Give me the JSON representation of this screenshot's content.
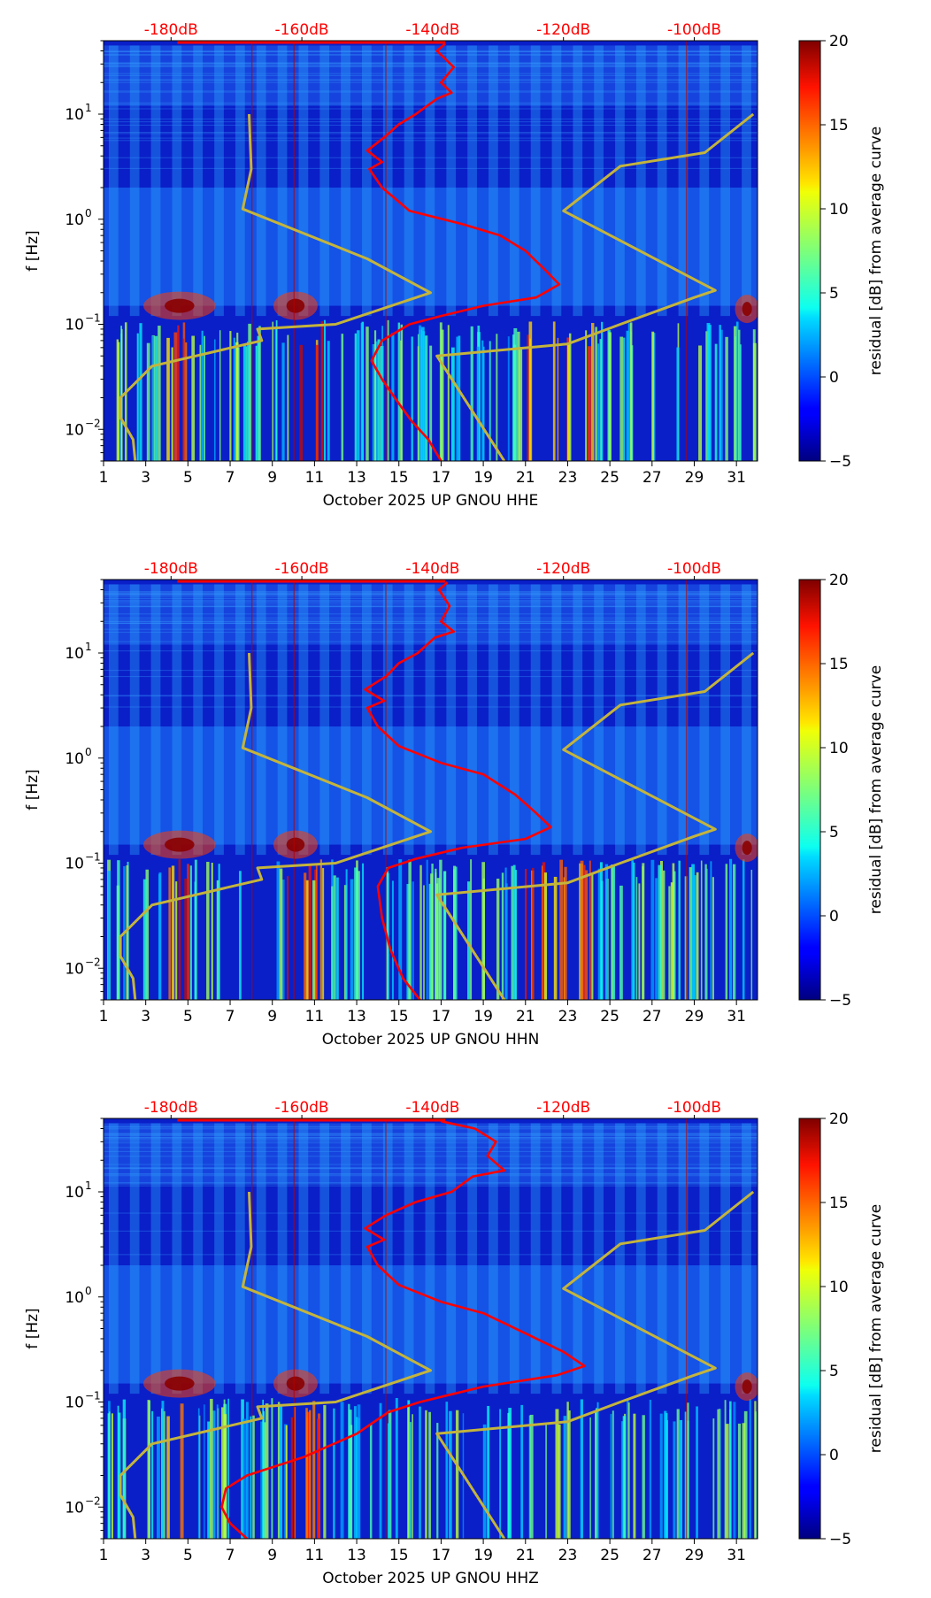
{
  "chart_data": [
    {
      "type": "heatmap",
      "title": "",
      "xlabel": "October 2025 UP GNOU  HHE",
      "ylabel": "f [Hz]",
      "x_tick_labels": [
        "1",
        "3",
        "5",
        "7",
        "9",
        "11",
        "13",
        "15",
        "17",
        "19",
        "21",
        "23",
        "25",
        "27",
        "29",
        "31"
      ],
      "x_ticks": [
        1,
        3,
        5,
        7,
        9,
        11,
        13,
        15,
        17,
        19,
        21,
        23,
        25,
        27,
        29,
        31
      ],
      "xlim": [
        1,
        32
      ],
      "yscale": "log",
      "ylim": [
        0.005,
        50
      ],
      "y_ticks": [
        0.01,
        0.1,
        1,
        10
      ],
      "y_tick_labels": [
        "10",
        "10",
        "10",
        "10"
      ],
      "y_tick_exponents": [
        "−2",
        "−1",
        "0",
        "1"
      ],
      "db_axis": {
        "labels": [
          "-180dB",
          "-160dB",
          "-140dB",
          "-120dB",
          "-100dB"
        ],
        "positions_day": [
          4.2,
          10.4,
          16.6,
          22.8,
          29.0
        ],
        "color": "#ff0000"
      },
      "colorbar": {
        "label": "residual [dB] from average curve",
        "range": [
          -5,
          20
        ],
        "ticks": [
          -5,
          0,
          5,
          10,
          15,
          20
        ],
        "tick_labels": [
          "−5",
          "0",
          "5",
          "10",
          "15",
          "20"
        ],
        "colormap": "jet"
      },
      "series": [
        {
          "name": "average curve",
          "color": "#ff0000",
          "points": [
            [
              17.0,
              0.005
            ],
            [
              16.4,
              0.008
            ],
            [
              15.6,
              0.012
            ],
            [
              14.8,
              0.02
            ],
            [
              14.2,
              0.03
            ],
            [
              13.7,
              0.045
            ],
            [
              14.2,
              0.07
            ],
            [
              15.5,
              0.1
            ],
            [
              17.0,
              0.12
            ],
            [
              19.0,
              0.15
            ],
            [
              21.5,
              0.18
            ],
            [
              22.6,
              0.24
            ],
            [
              21.8,
              0.35
            ],
            [
              21.0,
              0.5
            ],
            [
              19.8,
              0.7
            ],
            [
              18.0,
              0.9
            ],
            [
              15.5,
              1.2
            ],
            [
              14.2,
              2.0
            ],
            [
              13.6,
              3.0
            ],
            [
              14.2,
              3.5
            ],
            [
              13.5,
              4.5
            ],
            [
              14.3,
              6
            ],
            [
              15.0,
              8
            ],
            [
              15.8,
              10
            ],
            [
              16.8,
              14
            ],
            [
              17.5,
              16
            ],
            [
              17.0,
              20
            ],
            [
              17.6,
              28
            ],
            [
              16.8,
              40
            ],
            [
              17.2,
              47
            ]
          ]
        },
        {
          "name": "low noise model",
          "color": "#c4b43c",
          "points": [
            [
              2.5,
              0.005
            ],
            [
              2.4,
              0.008
            ],
            [
              1.8,
              0.013
            ],
            [
              1.8,
              0.02
            ],
            [
              3.3,
              0.04
            ],
            [
              8.5,
              0.07
            ],
            [
              8.3,
              0.09
            ],
            [
              12.0,
              0.1
            ],
            [
              16.5,
              0.2
            ],
            [
              13.5,
              0.42
            ],
            [
              7.6,
              1.25
            ],
            [
              8.0,
              3
            ],
            [
              7.9,
              10
            ]
          ]
        },
        {
          "name": "high noise model",
          "color": "#c4b43c",
          "points": [
            [
              20.0,
              0.005
            ],
            [
              16.8,
              0.05
            ],
            [
              23.0,
              0.065
            ],
            [
              25.5,
              0.1
            ],
            [
              29.0,
              0.18
            ],
            [
              30.0,
              0.21
            ],
            [
              22.8,
              1.2
            ],
            [
              25.5,
              3.2
            ],
            [
              29.5,
              4.3
            ],
            [
              31.8,
              10
            ]
          ]
        }
      ]
    },
    {
      "type": "heatmap",
      "title": "",
      "xlabel": "October 2025 UP GNOU  HHN",
      "ylabel": "f [Hz]",
      "x_tick_labels": [
        "1",
        "3",
        "5",
        "7",
        "9",
        "11",
        "13",
        "15",
        "17",
        "19",
        "21",
        "23",
        "25",
        "27",
        "29",
        "31"
      ],
      "x_ticks": [
        1,
        3,
        5,
        7,
        9,
        11,
        13,
        15,
        17,
        19,
        21,
        23,
        25,
        27,
        29,
        31
      ],
      "xlim": [
        1,
        32
      ],
      "yscale": "log",
      "ylim": [
        0.005,
        50
      ],
      "y_ticks": [
        0.01,
        0.1,
        1,
        10
      ],
      "y_tick_labels": [
        "10",
        "10",
        "10",
        "10"
      ],
      "y_tick_exponents": [
        "−2",
        "−1",
        "0",
        "1"
      ],
      "db_axis": {
        "labels": [
          "-180dB",
          "-160dB",
          "-140dB",
          "-120dB",
          "-100dB"
        ],
        "positions_day": [
          4.2,
          10.4,
          16.6,
          22.8,
          29.0
        ],
        "color": "#ff0000"
      },
      "colorbar": {
        "label": "residual [dB] from average curve",
        "range": [
          -5,
          20
        ],
        "ticks": [
          -5,
          0,
          5,
          10,
          15,
          20
        ],
        "tick_labels": [
          "−5",
          "0",
          "5",
          "10",
          "15",
          "20"
        ],
        "colormap": "jet"
      },
      "series": [
        {
          "name": "average curve",
          "color": "#ff0000",
          "points": [
            [
              16.0,
              0.005
            ],
            [
              15.2,
              0.008
            ],
            [
              14.6,
              0.015
            ],
            [
              14.2,
              0.03
            ],
            [
              14.0,
              0.06
            ],
            [
              14.5,
              0.09
            ],
            [
              15.8,
              0.11
            ],
            [
              18.0,
              0.14
            ],
            [
              21.0,
              0.17
            ],
            [
              22.2,
              0.22
            ],
            [
              21.5,
              0.3
            ],
            [
              20.5,
              0.45
            ],
            [
              19.0,
              0.7
            ],
            [
              17.0,
              0.9
            ],
            [
              15.0,
              1.3
            ],
            [
              14.0,
              2.0
            ],
            [
              13.5,
              3.0
            ],
            [
              14.3,
              3.5
            ],
            [
              13.4,
              4.5
            ],
            [
              14.4,
              6
            ],
            [
              15.0,
              8
            ],
            [
              15.9,
              10
            ],
            [
              16.7,
              14
            ],
            [
              17.6,
              16
            ],
            [
              17.0,
              20
            ],
            [
              17.4,
              28
            ],
            [
              16.9,
              40
            ],
            [
              17.3,
              47
            ]
          ]
        },
        {
          "name": "low noise model",
          "color": "#c4b43c",
          "points": [
            [
              2.5,
              0.005
            ],
            [
              2.4,
              0.008
            ],
            [
              1.8,
              0.013
            ],
            [
              1.8,
              0.02
            ],
            [
              3.3,
              0.04
            ],
            [
              8.5,
              0.07
            ],
            [
              8.3,
              0.09
            ],
            [
              12.0,
              0.1
            ],
            [
              16.5,
              0.2
            ],
            [
              13.5,
              0.42
            ],
            [
              7.6,
              1.25
            ],
            [
              8.0,
              3
            ],
            [
              7.9,
              10
            ]
          ]
        },
        {
          "name": "high noise model",
          "color": "#c4b43c",
          "points": [
            [
              20.0,
              0.005
            ],
            [
              16.8,
              0.05
            ],
            [
              23.0,
              0.065
            ],
            [
              25.5,
              0.1
            ],
            [
              29.0,
              0.18
            ],
            [
              30.0,
              0.21
            ],
            [
              22.8,
              1.2
            ],
            [
              25.5,
              3.2
            ],
            [
              29.5,
              4.3
            ],
            [
              31.8,
              10
            ]
          ]
        }
      ]
    },
    {
      "type": "heatmap",
      "title": "",
      "xlabel": "October 2025 UP GNOU  HHZ",
      "ylabel": "f [Hz]",
      "x_tick_labels": [
        "1",
        "3",
        "5",
        "7",
        "9",
        "11",
        "13",
        "15",
        "17",
        "19",
        "21",
        "23",
        "25",
        "27",
        "29",
        "31"
      ],
      "x_ticks": [
        1,
        3,
        5,
        7,
        9,
        11,
        13,
        15,
        17,
        19,
        21,
        23,
        25,
        27,
        29,
        31
      ],
      "xlim": [
        1,
        32
      ],
      "yscale": "log",
      "ylim": [
        0.005,
        50
      ],
      "y_ticks": [
        0.01,
        0.1,
        1,
        10
      ],
      "y_tick_labels": [
        "10",
        "10",
        "10",
        "10"
      ],
      "y_tick_exponents": [
        "−2",
        "−1",
        "0",
        "1"
      ],
      "db_axis": {
        "labels": [
          "-180dB",
          "-160dB",
          "-140dB",
          "-120dB",
          "-100dB"
        ],
        "positions_day": [
          4.2,
          10.4,
          16.6,
          22.8,
          29.0
        ],
        "color": "#ff0000"
      },
      "colorbar": {
        "label": "residual [dB] from average curve",
        "range": [
          -5,
          20
        ],
        "ticks": [
          -5,
          0,
          5,
          10,
          15,
          20
        ],
        "tick_labels": [
          "−5",
          "0",
          "5",
          "10",
          "15",
          "20"
        ],
        "colormap": "jet"
      },
      "series": [
        {
          "name": "average curve",
          "color": "#ff0000",
          "points": [
            [
              7.8,
              0.005
            ],
            [
              7.0,
              0.007
            ],
            [
              6.6,
              0.01
            ],
            [
              6.8,
              0.015
            ],
            [
              7.8,
              0.02
            ],
            [
              10.5,
              0.03
            ],
            [
              13.0,
              0.05
            ],
            [
              14.5,
              0.08
            ],
            [
              16.0,
              0.1
            ],
            [
              19.0,
              0.14
            ],
            [
              22.5,
              0.18
            ],
            [
              23.8,
              0.22
            ],
            [
              22.8,
              0.3
            ],
            [
              21.0,
              0.45
            ],
            [
              19.0,
              0.7
            ],
            [
              17.0,
              0.9
            ],
            [
              15.0,
              1.3
            ],
            [
              14.0,
              2.0
            ],
            [
              13.5,
              3.0
            ],
            [
              14.3,
              3.5
            ],
            [
              13.4,
              4.5
            ],
            [
              14.4,
              6
            ],
            [
              15.8,
              8
            ],
            [
              17.5,
              10
            ],
            [
              18.5,
              14
            ],
            [
              20.0,
              16
            ],
            [
              19.2,
              22
            ],
            [
              19.6,
              30
            ],
            [
              18.6,
              40
            ],
            [
              17.0,
              47
            ]
          ]
        },
        {
          "name": "low noise model",
          "color": "#c4b43c",
          "points": [
            [
              2.5,
              0.005
            ],
            [
              2.4,
              0.008
            ],
            [
              1.8,
              0.013
            ],
            [
              1.8,
              0.02
            ],
            [
              3.3,
              0.04
            ],
            [
              8.5,
              0.07
            ],
            [
              8.3,
              0.09
            ],
            [
              12.0,
              0.1
            ],
            [
              16.5,
              0.2
            ],
            [
              13.5,
              0.42
            ],
            [
              7.6,
              1.25
            ],
            [
              8.0,
              3
            ],
            [
              7.9,
              10
            ]
          ]
        },
        {
          "name": "high noise model",
          "color": "#c4b43c",
          "points": [
            [
              20.0,
              0.005
            ],
            [
              16.8,
              0.05
            ],
            [
              23.0,
              0.065
            ],
            [
              25.5,
              0.1
            ],
            [
              29.0,
              0.18
            ],
            [
              30.0,
              0.21
            ],
            [
              22.8,
              1.2
            ],
            [
              25.5,
              3.2
            ],
            [
              29.5,
              4.3
            ],
            [
              31.8,
              10
            ]
          ]
        }
      ]
    }
  ]
}
